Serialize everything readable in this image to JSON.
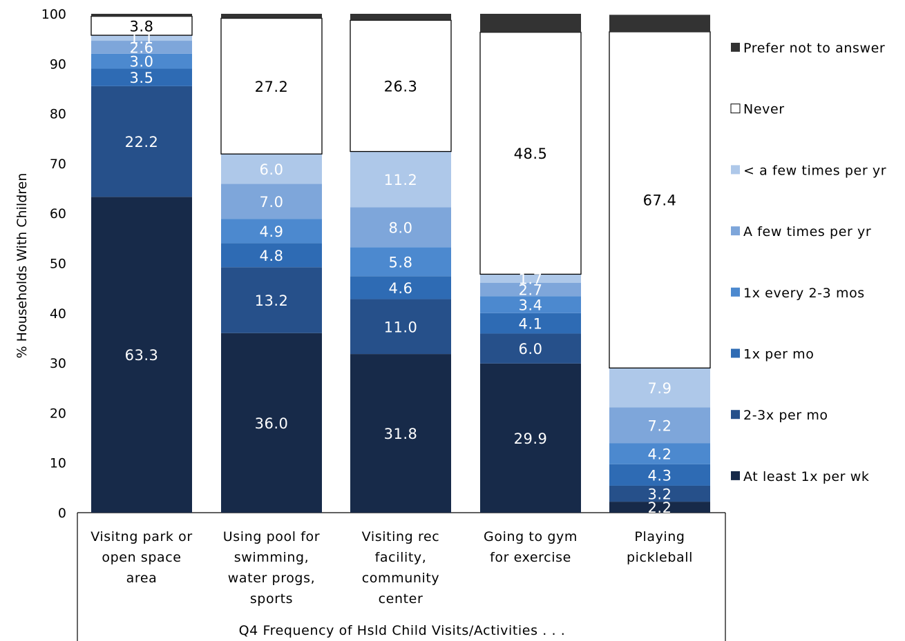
{
  "chart_data": {
    "type": "bar",
    "stacked": true,
    "title": "",
    "ylabel": "% Households With Children",
    "xlabel": "Q4 Frequency of Hsld Child Visits/Activities . . .",
    "ylim": [
      0,
      100
    ],
    "yticks": [
      "0",
      "10",
      "20",
      "30",
      "40",
      "50",
      "60",
      "70",
      "80",
      "90",
      "100"
    ],
    "categories": [
      [
        "Visitng park or",
        "open space",
        "area"
      ],
      [
        "Using pool for",
        "swimming,",
        "water progs,",
        "sports"
      ],
      [
        "Visiting rec",
        "facility,",
        "community",
        "center"
      ],
      [
        "Going to gym",
        "for exercise"
      ],
      [
        "Playing",
        "pickleball"
      ]
    ],
    "series": [
      {
        "name": "At least 1x per wk",
        "color": "#172a49",
        "label_color": "#ffffff",
        "values": [
          63.3,
          36.0,
          31.8,
          29.9,
          2.2
        ],
        "labels": [
          "63.3",
          "36.0",
          "31.8",
          "29.9",
          "2.2"
        ]
      },
      {
        "name": "2-3x per mo",
        "color": "#26508a",
        "label_color": "#ffffff",
        "values": [
          22.2,
          13.2,
          11.0,
          6.0,
          3.2
        ],
        "labels": [
          "22.2",
          "13.2",
          "11.0",
          "6.0",
          "3.2"
        ]
      },
      {
        "name": "1x per mo",
        "color": "#2e6bb4",
        "label_color": "#ffffff",
        "values": [
          3.5,
          4.8,
          4.6,
          4.1,
          4.3
        ],
        "labels": [
          "3.5",
          "4.8",
          "4.6",
          "4.1",
          "4.3"
        ]
      },
      {
        "name": "1x every 2-3 mos",
        "color": "#4c89cf",
        "label_color": "#ffffff",
        "values": [
          3.0,
          4.9,
          5.8,
          3.4,
          4.2
        ],
        "labels": [
          "3.0",
          "4.9",
          "5.8",
          "3.4",
          "4.2"
        ]
      },
      {
        "name": "A few times per yr",
        "color": "#7ea6da",
        "label_color": "#ffffff",
        "values": [
          2.6,
          7.0,
          8.0,
          2.7,
          7.2
        ],
        "labels": [
          "2.6",
          "7.0",
          "8.0",
          "2.7",
          "7.2"
        ]
      },
      {
        "name": "< a few times per yr",
        "color": "#aec8e9",
        "label_color": "#ffffff",
        "values": [
          1.1,
          6.0,
          11.2,
          1.7,
          7.9
        ],
        "labels": [
          "1.1",
          "6.0",
          "11.2",
          "1.7",
          "7.9"
        ]
      },
      {
        "name": "Never",
        "color": "#ffffff",
        "label_color": "#000000",
        "values": [
          3.8,
          27.2,
          26.3,
          48.5,
          67.4
        ],
        "labels": [
          "3.8",
          "27.2",
          "26.3",
          "48.5",
          "67.4"
        ]
      },
      {
        "name": "Prefer not to answer",
        "color": "#333333",
        "label_color": "#ffffff",
        "values": [
          0.5,
          0.9,
          1.3,
          3.7,
          3.4
        ],
        "labels": [
          "",
          "",
          "",
          "",
          ""
        ]
      }
    ],
    "legend_order": [
      "Prefer not to answer",
      "Never",
      "< a few times per yr",
      "A few times per yr",
      "1x every 2-3 mos",
      "1x per mo",
      "2-3x per mo",
      "At least 1x per wk"
    ],
    "legend_position": "right",
    "grid": false
  }
}
